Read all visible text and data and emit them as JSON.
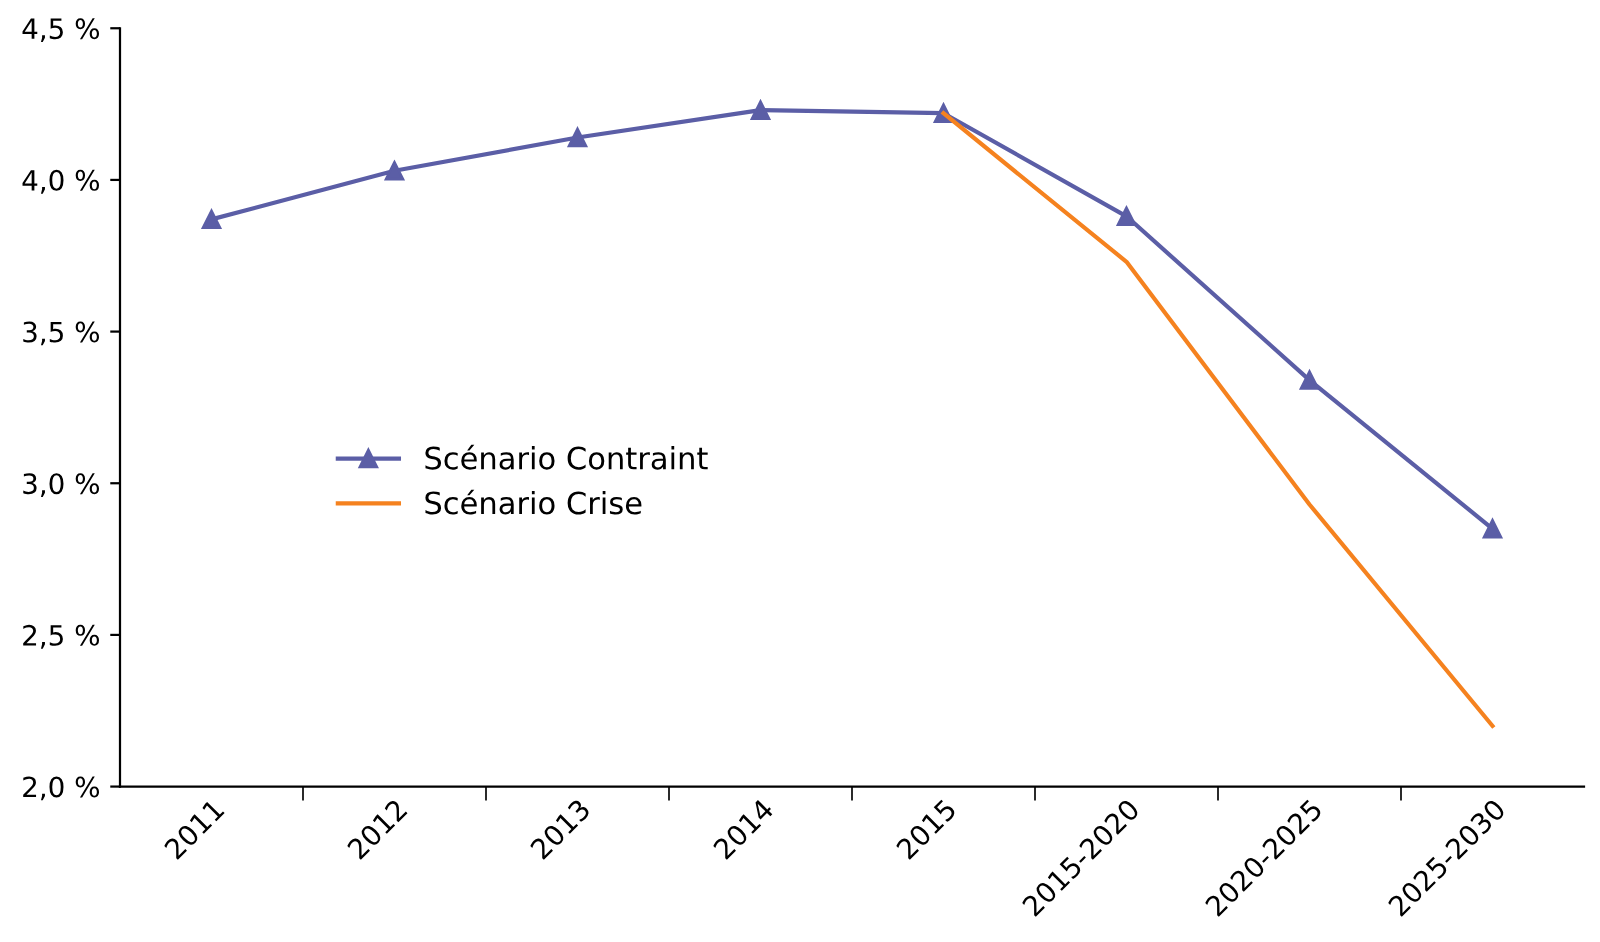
{
  "chart_data": {
    "type": "line",
    "categories": [
      "2011",
      "2012",
      "2013",
      "2014",
      "2015",
      "2015-2020",
      "2020-2025",
      "2025-2030"
    ],
    "series": [
      {
        "name": "Scénario Contraint",
        "color": "#5b5ea6",
        "marker": "triangle",
        "values": [
          3.87,
          4.03,
          4.14,
          4.23,
          4.22,
          3.88,
          3.34,
          2.85
        ]
      },
      {
        "name": "Scénario Crise",
        "color": "#f5821f",
        "marker": "none",
        "values": [
          null,
          null,
          null,
          null,
          4.22,
          3.73,
          2.93,
          2.2
        ]
      }
    ],
    "ylim": [
      2.0,
      4.5
    ],
    "yticks": [
      {
        "value": 2.0,
        "label": "2,0 %"
      },
      {
        "value": 2.5,
        "label": "2,5 %"
      },
      {
        "value": 3.0,
        "label": "3,0 %"
      },
      {
        "value": 3.5,
        "label": "3,5 %"
      },
      {
        "value": 4.0,
        "label": "4,0 %"
      },
      {
        "value": 4.5,
        "label": "4,5 %"
      }
    ],
    "grid": false,
    "legend": "left",
    "line_style": "solid"
  }
}
